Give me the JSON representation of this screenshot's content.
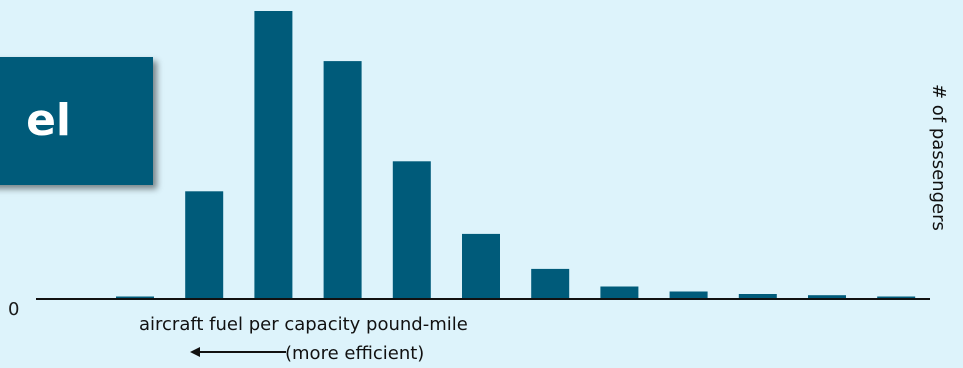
{
  "title_fragment": "el",
  "chart_data": {
    "type": "bar",
    "title": "",
    "xlabel": "aircraft fuel per capacity pound-mile",
    "xlabel_note": "(more efficient)",
    "ylabel": "# of passengers",
    "y_zero_label": "0",
    "values": [
      1,
      43,
      115,
      95,
      55,
      26,
      12,
      5,
      3,
      2,
      1.5,
      1
    ],
    "ylim": [
      0,
      115
    ],
    "grid": false,
    "legend": "none",
    "color": "#005b7a"
  }
}
